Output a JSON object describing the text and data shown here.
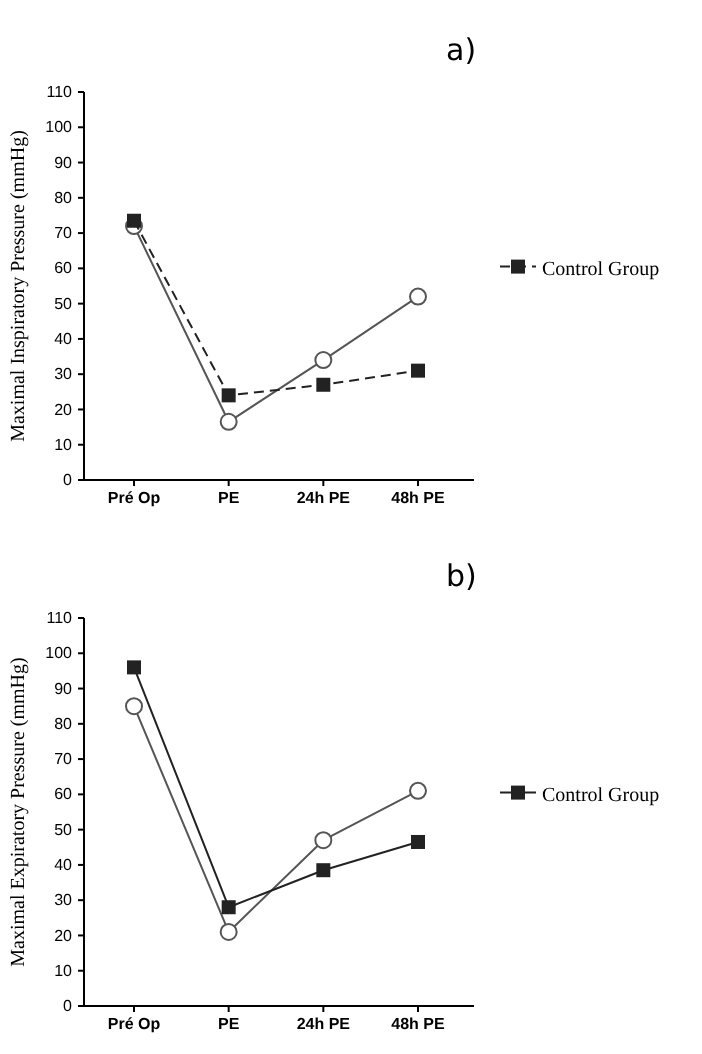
{
  "chart_data": [
    {
      "type": "line",
      "title": "a)",
      "ylabel": "Maximal Inspiratory Pressure (mmHg)",
      "categories": [
        "Pré Op",
        "PE",
        "24h PE",
        "48h PE"
      ],
      "ylim": [
        0,
        110
      ],
      "yticks": [
        0,
        10,
        20,
        30,
        40,
        50,
        60,
        70,
        80,
        90,
        100,
        110
      ],
      "legend": "right",
      "grid": false,
      "series": [
        {
          "name": "Control Group",
          "color": "#222222",
          "marker": "square",
          "line_style": "dashed",
          "values": [
            73.5,
            24,
            27,
            31
          ]
        },
        {
          "color": "#555555",
          "marker": "circle",
          "line_style": "solid",
          "values": [
            72,
            16.5,
            34,
            52
          ]
        }
      ]
    },
    {
      "type": "line",
      "title": "b)",
      "ylabel": "Maximal Expiratory Pressure (mmHg)",
      "categories": [
        "Pré Op",
        "PE",
        "24h PE",
        "48h PE"
      ],
      "ylim": [
        0,
        110
      ],
      "yticks": [
        0,
        10,
        20,
        30,
        40,
        50,
        60,
        70,
        80,
        90,
        100,
        110
      ],
      "legend": "right",
      "grid": false,
      "series": [
        {
          "name": "Control Group",
          "color": "#222222",
          "marker": "square",
          "line_style": "solid",
          "values": [
            96,
            28,
            38.5,
            46.5
          ]
        },
        {
          "color": "#555555",
          "marker": "circle",
          "line_style": "solid",
          "values": [
            85,
            21,
            47,
            61
          ]
        }
      ]
    }
  ]
}
